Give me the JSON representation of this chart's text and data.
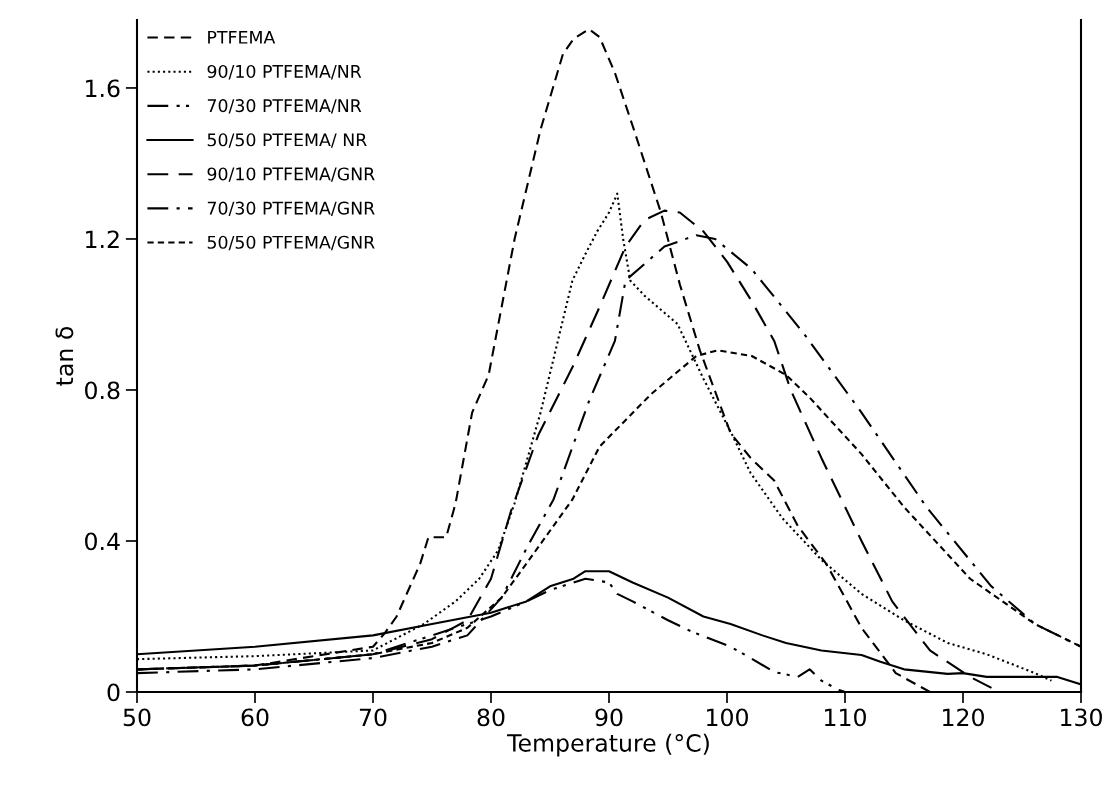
{
  "chart_data": {
    "type": "line",
    "xlabel": "Temperature (°C)",
    "ylabel": "tan δ",
    "xlim": [
      50,
      130
    ],
    "xticks": [
      50,
      60,
      70,
      80,
      90,
      100,
      110,
      120,
      130
    ],
    "ylim": [
      0,
      1.78
    ],
    "yticks": [
      {
        "value": 0,
        "label": "0"
      },
      1.6,
      1.2,
      0.8,
      0.4
    ],
    "grid": false,
    "legend": "top left",
    "marker": "none",
    "series": [
      {
        "name": "PTFEMA",
        "color": "#000000",
        "line_style": "dashed",
        "x": [
          50,
          60,
          70,
          71,
          72,
          74,
          74.7,
          76.2,
          77,
          78.4,
          79.8,
          82,
          84.2,
          86.1,
          87,
          88.3,
          89.2,
          90.5,
          92,
          94.4,
          96,
          97.7,
          100.3,
          102,
          104,
          106,
          108.4,
          110,
          111.4,
          114.3,
          117.2
        ],
        "values": [
          0.06,
          0.07,
          0.12,
          0.156,
          0.2,
          0.34,
          0.41,
          0.41,
          0.5,
          0.74,
          0.84,
          1.2,
          1.49,
          1.69,
          1.73,
          1.756,
          1.735,
          1.64,
          1.5,
          1.27,
          1.08,
          0.905,
          0.686,
          0.62,
          0.56,
          0.44,
          0.34,
          0.25,
          0.17,
          0.05,
          0.0
        ]
      },
      {
        "name": "90/10 PTFEMA/NR",
        "color": "#000000",
        "line_style": "dotted",
        "x": [
          50,
          60,
          70,
          74.3,
          77,
          79,
          80.6,
          82,
          84.2,
          86.9,
          88,
          89,
          90,
          90.7,
          91.2,
          91.8,
          93,
          95.8,
          98,
          100.3,
          102,
          104.7,
          108,
          111.4,
          115,
          118.7,
          122,
          126.1,
          127.5
        ],
        "values": [
          0.087,
          0.095,
          0.11,
          0.18,
          0.24,
          0.3,
          0.375,
          0.5,
          0.74,
          1.09,
          1.16,
          1.22,
          1.27,
          1.32,
          1.2,
          1.09,
          1.05,
          0.975,
          0.83,
          0.69,
          0.58,
          0.46,
          0.35,
          0.26,
          0.19,
          0.13,
          0.1,
          0.05,
          0.03
        ]
      },
      {
        "name": "70/30 PTFEMA/NR",
        "color": "#000000",
        "line_style": "dashdotdot",
        "x": [
          50,
          60,
          70,
          75,
          80,
          83,
          85,
          88,
          90,
          90.7,
          92,
          95,
          97,
          100.3,
          102,
          104,
          106,
          107,
          108,
          109.5,
          110
        ],
        "values": [
          0.06,
          0.07,
          0.1,
          0.15,
          0.2,
          0.24,
          0.27,
          0.3,
          0.29,
          0.26,
          0.24,
          0.19,
          0.16,
          0.12,
          0.09,
          0.053,
          0.04,
          0.06,
          0.03,
          0.005,
          0.0
        ]
      },
      {
        "name": "50/50 PTFEMA/ NR",
        "color": "#000000",
        "line_style": "solid",
        "x": [
          50,
          60,
          70,
          75,
          80,
          83,
          85,
          87,
          88,
          90,
          92,
          95,
          98,
          100.3,
          103,
          105,
          108,
          111.4,
          113,
          115,
          118.7,
          120,
          122,
          125,
          128,
          130
        ],
        "values": [
          0.1,
          0.12,
          0.15,
          0.18,
          0.21,
          0.24,
          0.28,
          0.3,
          0.32,
          0.32,
          0.29,
          0.25,
          0.2,
          0.18,
          0.15,
          0.13,
          0.11,
          0.098,
          0.08,
          0.06,
          0.048,
          0.05,
          0.04,
          0.04,
          0.04,
          0.02
        ]
      },
      {
        "name": "90/10 PTFEMA/GNR",
        "color": "#000000",
        "line_style": "longdash",
        "x": [
          50,
          60,
          70,
          75,
          78,
          80,
          81.7,
          84,
          86.9,
          89.2,
          91.4,
          93,
          94.7,
          96,
          98,
          100,
          102,
          104,
          105.4,
          108,
          111.4,
          114,
          117.2,
          120.6,
          123.1
        ],
        "values": [
          0.06,
          0.07,
          0.1,
          0.14,
          0.19,
          0.3,
          0.48,
          0.68,
          0.86,
          1.02,
          1.18,
          1.25,
          1.275,
          1.27,
          1.22,
          1.14,
          1.04,
          0.93,
          0.8,
          0.62,
          0.4,
          0.24,
          0.11,
          0.04,
          0.0
        ]
      },
      {
        "name": "70/30 PTFEMA/GNR",
        "color": "#000000",
        "line_style": "dashdot",
        "x": [
          50,
          60,
          70,
          75,
          78,
          80.9,
          83,
          85.3,
          88.3,
          90.5,
          91.4,
          94.7,
          97.4,
          99,
          102.1,
          106.5,
          111.4,
          116.9,
          122.4,
          126.1,
          130
        ],
        "values": [
          0.05,
          0.06,
          0.09,
          0.12,
          0.15,
          0.25,
          0.38,
          0.51,
          0.77,
          0.93,
          1.09,
          1.18,
          1.21,
          1.2,
          1.12,
          0.95,
          0.74,
          0.49,
          0.28,
          0.18,
          0.12
        ]
      },
      {
        "name": "50/50 PTFEMA/GNR",
        "color": "#000000",
        "line_style": "shortdash",
        "x": [
          50,
          60,
          70,
          75,
          78,
          80.9,
          83,
          86.9,
          89.2,
          93.6,
          97.4,
          99.2,
          102.1,
          105,
          107,
          111.4,
          115,
          120.6,
          126.1,
          130
        ],
        "values": [
          0.06,
          0.07,
          0.1,
          0.13,
          0.17,
          0.25,
          0.34,
          0.51,
          0.65,
          0.79,
          0.89,
          0.905,
          0.89,
          0.84,
          0.78,
          0.63,
          0.49,
          0.3,
          0.18,
          0.12
        ]
      }
    ]
  }
}
